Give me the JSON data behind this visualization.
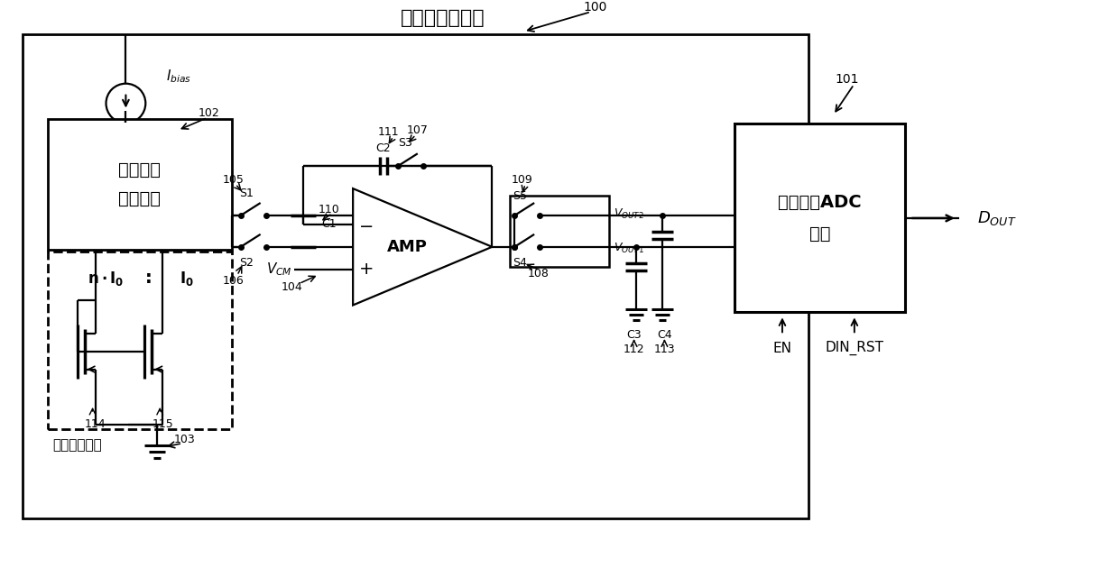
{
  "fig_width": 12.39,
  "fig_height": 6.3,
  "dpi": 100,
  "title": "温度转电压模块",
  "lbl_100": "100",
  "lbl_101": "101",
  "lbl_102": "102",
  "lbl_103": "103",
  "lbl_104": "104",
  "lbl_105": "105",
  "lbl_106": "106",
  "lbl_107": "107",
  "lbl_108": "108",
  "lbl_109": "109",
  "lbl_110": "110",
  "lbl_111": "111",
  "lbl_112": "112",
  "lbl_113": "113",
  "lbl_114": "114",
  "lbl_115": "115",
  "bldl_label1": "比例电流",
  "bldl_label2": "生成电路",
  "core_label": "核心感温模块",
  "adc_label1": "单积分型ADC",
  "adc_label2": "模块"
}
